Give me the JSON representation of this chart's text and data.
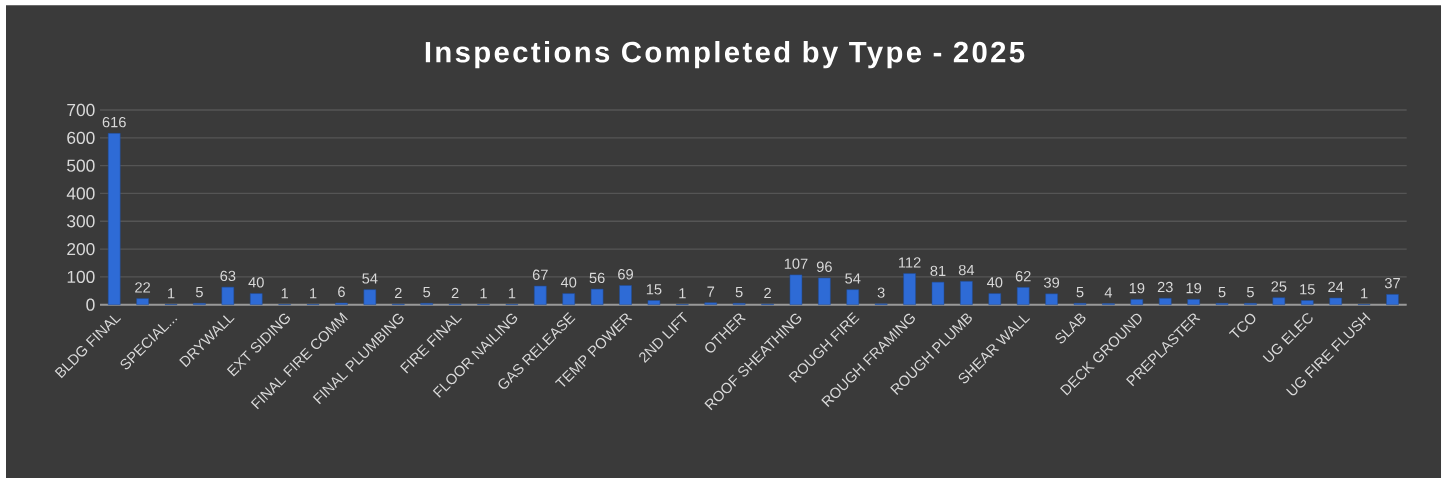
{
  "chart_data": {
    "type": "bar",
    "title": "Inspections Completed by Type - 2025",
    "categories": [
      "BLDG FINAL",
      null,
      "SPECIAL...",
      null,
      "DRYWALL",
      null,
      "EXT SIDING",
      null,
      "FINAL FIRE COMM",
      null,
      "FINAL PLUMBING",
      null,
      "FIRE FINAL",
      null,
      "FLOOR NAILING",
      null,
      "GAS RELEASE",
      null,
      "TEMP POWER",
      null,
      "2ND LIFT",
      null,
      "OTHER",
      null,
      "ROOF SHEATHING",
      null,
      "ROUGH FIRE",
      null,
      "ROUGH FRAMING",
      null,
      "ROUGH PLUMB",
      null,
      "SHEAR WALL",
      null,
      "SLAB",
      null,
      "DECK GROUND",
      null,
      "PREPLASTER",
      null,
      "TCO",
      null,
      "UG ELEC",
      null,
      "UG FIRE FLUSH",
      null
    ],
    "values": [
      616,
      22,
      1,
      5,
      63,
      40,
      1,
      1,
      6,
      54,
      2,
      5,
      2,
      1,
      1,
      67,
      40,
      56,
      69,
      15,
      1,
      7,
      5,
      2,
      107,
      96,
      54,
      3,
      112,
      81,
      84,
      40,
      62,
      39,
      5,
      4,
      19,
      23,
      19,
      5,
      5,
      25,
      15,
      24,
      1,
      37
    ],
    "color": "#2e6bd6",
    "ylim": [
      0,
      700
    ],
    "yticks": [
      0,
      100,
      200,
      300,
      400,
      500,
      600,
      700
    ],
    "grid": "y",
    "data_labels": true
  }
}
